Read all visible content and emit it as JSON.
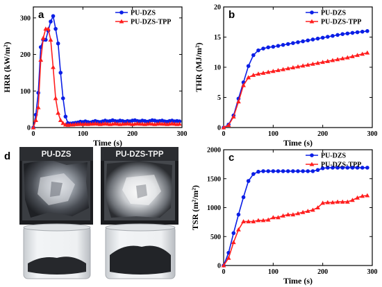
{
  "chart_data": [
    {
      "id": "a",
      "type": "line",
      "panel_letter": "a",
      "xlabel": "Time (s)",
      "ylabel": "HRR (kW/m²)",
      "xlim": [
        0,
        300
      ],
      "ylim": [
        0,
        330
      ],
      "xticks": [
        0,
        100,
        200,
        300
      ],
      "yticks": [
        0,
        100,
        200,
        300
      ],
      "legend_position": "top-right",
      "series": [
        {
          "name": "PU-DZS",
          "color": "#0a1ee6",
          "marker": "circle",
          "x": [
            0,
            5,
            10,
            15,
            20,
            25,
            30,
            35,
            40,
            45,
            50,
            55,
            60,
            65,
            70,
            75,
            80,
            85,
            90,
            95,
            100,
            105,
            110,
            115,
            120,
            125,
            130,
            135,
            140,
            145,
            150,
            155,
            160,
            165,
            170,
            175,
            180,
            185,
            190,
            195,
            200,
            205,
            210,
            215,
            220,
            225,
            230,
            235,
            240,
            245,
            250,
            255,
            260,
            265,
            270,
            275,
            280,
            285,
            290,
            295
          ],
          "y": [
            0,
            35,
            95,
            220,
            240,
            240,
            265,
            290,
            305,
            270,
            230,
            150,
            80,
            30,
            12,
            11,
            12,
            13,
            14,
            16,
            15,
            17,
            15,
            14,
            16,
            18,
            16,
            15,
            17,
            19,
            17,
            18,
            20,
            18,
            17,
            19,
            18,
            16,
            18,
            17,
            19,
            20,
            18,
            17,
            19,
            18,
            16,
            18,
            20,
            19,
            17,
            18,
            19,
            17,
            16,
            18,
            19,
            17,
            18,
            17
          ]
        },
        {
          "name": "PU-DZS-TPP",
          "color": "#ff1e1e",
          "marker": "triangle",
          "x": [
            0,
            5,
            10,
            15,
            20,
            25,
            30,
            35,
            40,
            45,
            50,
            55,
            60,
            65,
            70,
            75,
            80,
            85,
            90,
            95,
            100,
            105,
            110,
            115,
            120,
            125,
            130,
            135,
            140,
            145,
            150,
            155,
            160,
            165,
            170,
            175,
            180,
            185,
            190,
            195,
            200,
            205,
            210,
            215,
            220,
            225,
            230,
            235,
            240,
            245,
            250,
            255,
            260,
            265,
            270,
            275,
            280,
            285,
            290,
            295
          ],
          "y": [
            0,
            20,
            55,
            185,
            245,
            270,
            270,
            240,
            165,
            80,
            40,
            20,
            12,
            8,
            7,
            8,
            8,
            9,
            9,
            10,
            9,
            10,
            9,
            10,
            10,
            11,
            10,
            9,
            10,
            11,
            10,
            9,
            10,
            11,
            10,
            9,
            10,
            10,
            11,
            10,
            9,
            10,
            11,
            10,
            10,
            9,
            10,
            11,
            10,
            9,
            10,
            11,
            10,
            10,
            9,
            10,
            11,
            10,
            9,
            10
          ]
        }
      ]
    },
    {
      "id": "b",
      "type": "line",
      "panel_letter": "b",
      "xlabel": "Time (s)",
      "ylabel": "THR (MJ/m²)",
      "xlim": [
        0,
        300
      ],
      "ylim": [
        0,
        20
      ],
      "xticks": [
        0,
        100,
        200,
        300
      ],
      "yticks": [
        0,
        5,
        10,
        15,
        20
      ],
      "legend_position": "top-right",
      "series": [
        {
          "name": "PU-DZS",
          "color": "#0a1ee6",
          "marker": "circle",
          "x": [
            0,
            10,
            20,
            30,
            40,
            50,
            60,
            70,
            80,
            90,
            100,
            110,
            120,
            130,
            140,
            150,
            160,
            170,
            180,
            190,
            200,
            210,
            220,
            230,
            240,
            250,
            260,
            270,
            280,
            290
          ],
          "y": [
            0,
            0.5,
            2.0,
            4.8,
            7.5,
            10.2,
            12.0,
            12.8,
            13.1,
            13.3,
            13.4,
            13.55,
            13.7,
            13.85,
            14.0,
            14.15,
            14.3,
            14.45,
            14.6,
            14.75,
            14.9,
            15.05,
            15.2,
            15.35,
            15.5,
            15.6,
            15.7,
            15.8,
            15.9,
            16.0
          ]
        },
        {
          "name": "PU-DZS-TPP",
          "color": "#ff1e1e",
          "marker": "triangle",
          "x": [
            0,
            10,
            20,
            30,
            40,
            50,
            60,
            70,
            80,
            90,
            100,
            110,
            120,
            130,
            140,
            150,
            160,
            170,
            180,
            190,
            200,
            210,
            220,
            230,
            240,
            250,
            260,
            270,
            280,
            290
          ],
          "y": [
            0,
            0.4,
            1.8,
            4.3,
            7.0,
            8.3,
            8.7,
            8.9,
            9.05,
            9.2,
            9.35,
            9.5,
            9.65,
            9.8,
            9.95,
            10.1,
            10.25,
            10.4,
            10.55,
            10.7,
            10.85,
            11.0,
            11.15,
            11.3,
            11.45,
            11.6,
            11.8,
            12.0,
            12.2,
            12.4
          ]
        }
      ]
    },
    {
      "id": "c",
      "type": "line",
      "panel_letter": "c",
      "xlabel": "Time (s)",
      "ylabel": "TSR (m²/m²)",
      "xlim": [
        0,
        300
      ],
      "ylim": [
        0,
        2000
      ],
      "xticks": [
        0,
        100,
        200,
        300
      ],
      "yticks": [
        0,
        500,
        1000,
        1500,
        2000
      ],
      "legend_position": "top-right",
      "series": [
        {
          "name": "PU-DZS",
          "color": "#0a1ee6",
          "marker": "circle",
          "x": [
            0,
            10,
            20,
            30,
            40,
            50,
            60,
            70,
            80,
            90,
            100,
            110,
            120,
            130,
            140,
            150,
            160,
            170,
            180,
            190,
            200,
            210,
            220,
            230,
            240,
            250,
            260,
            270,
            280,
            290
          ],
          "y": [
            0,
            220,
            560,
            880,
            1180,
            1460,
            1580,
            1620,
            1630,
            1630,
            1630,
            1630,
            1630,
            1630,
            1630,
            1630,
            1630,
            1630,
            1630,
            1650,
            1680,
            1690,
            1690,
            1690,
            1690,
            1690,
            1690,
            1690,
            1690,
            1690
          ]
        },
        {
          "name": "PU-DZS-TPP",
          "color": "#ff1e1e",
          "marker": "triangle",
          "x": [
            0,
            10,
            20,
            30,
            40,
            50,
            60,
            70,
            80,
            90,
            100,
            110,
            120,
            130,
            140,
            150,
            160,
            170,
            180,
            190,
            200,
            210,
            220,
            230,
            240,
            250,
            260,
            270,
            280,
            290
          ],
          "y": [
            0,
            130,
            400,
            620,
            760,
            760,
            760,
            780,
            780,
            790,
            830,
            830,
            860,
            880,
            880,
            900,
            920,
            940,
            960,
            1000,
            1080,
            1090,
            1090,
            1100,
            1100,
            1100,
            1130,
            1170,
            1200,
            1210
          ]
        }
      ]
    }
  ],
  "photo_panel": {
    "panel_letter": "d",
    "left_label": "PU-DZS",
    "right_label": "PU-DZS-TPP"
  }
}
